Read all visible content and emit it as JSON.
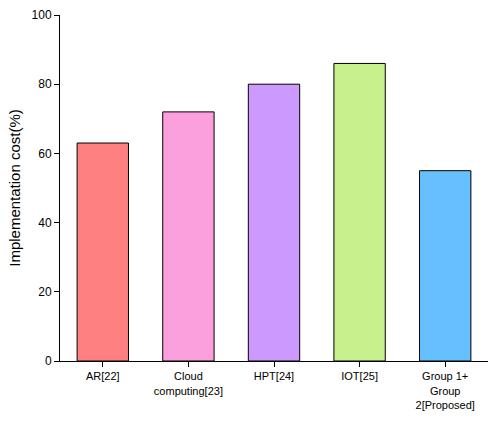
{
  "chart_data": {
    "type": "bar",
    "categories": [
      "AR[22]",
      "Cloud computing[23]",
      "HPT[24]",
      "IOT[25]",
      "Group 1+ Group 2[Proposed]"
    ],
    "values": [
      63,
      72,
      80,
      86,
      55
    ],
    "colors": [
      "#ff8080",
      "#fba0dc",
      "#cc99ff",
      "#c8f08c",
      "#66c0ff"
    ],
    "ylabel": "Implementation cost(%)",
    "ylim": [
      0,
      100
    ],
    "yticks": [
      0,
      20,
      40,
      60,
      80,
      100
    ],
    "grid": false
  }
}
